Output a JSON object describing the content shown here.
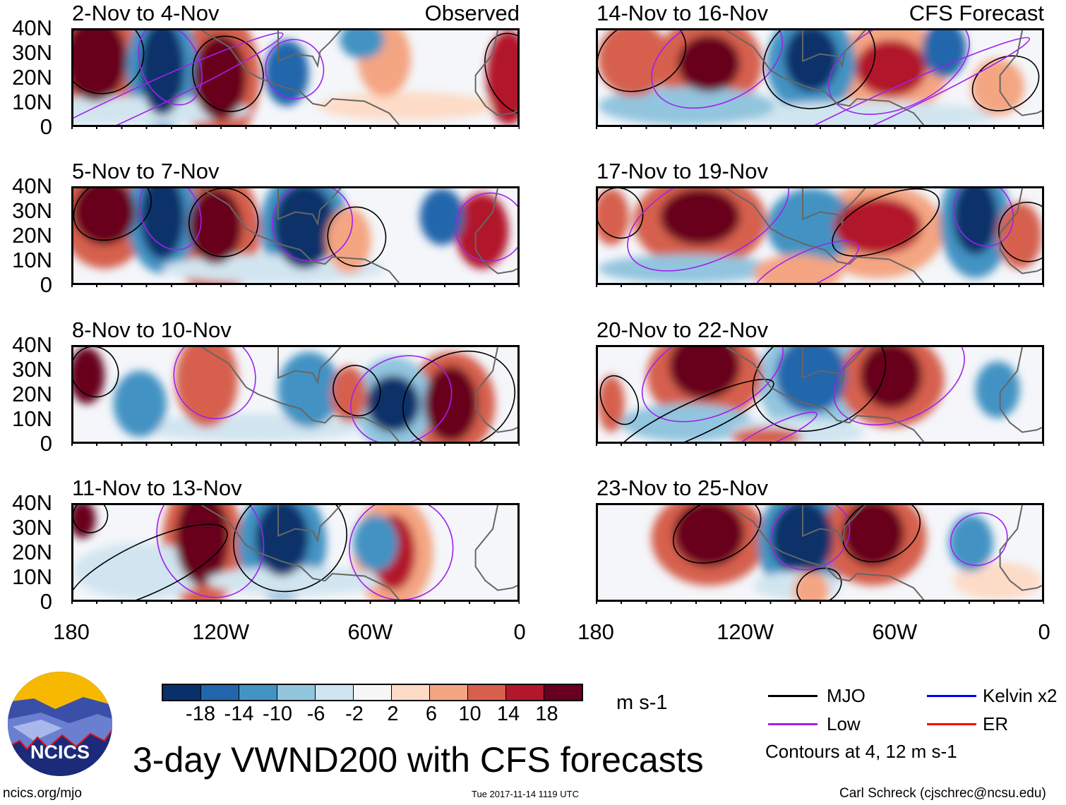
{
  "panels": [
    {
      "title": "2-Nov to 4-Nov",
      "tag": "Observed"
    },
    {
      "title": "14-Nov to 16-Nov",
      "tag": "CFS Forecast"
    },
    {
      "title": "5-Nov to 7-Nov"
    },
    {
      "title": "17-Nov to 19-Nov"
    },
    {
      "title": "8-Nov to 10-Nov"
    },
    {
      "title": "20-Nov to 22-Nov"
    },
    {
      "title": "11-Nov to 13-Nov"
    },
    {
      "title": "23-Nov to 25-Nov"
    }
  ],
  "lat_labels": [
    "40N",
    "30N",
    "20N",
    "10N",
    "0"
  ],
  "lon_labels": [
    "180",
    "120W",
    "60W",
    "0"
  ],
  "colorbar": {
    "colors": [
      "#08306b",
      "#2166ac",
      "#4393c3",
      "#92c5de",
      "#d1e5f0",
      "#f7f7f7",
      "#fddbc7",
      "#f4a582",
      "#d6604d",
      "#b2182b",
      "#67001f"
    ],
    "labels": [
      "-18",
      "-14",
      "-10",
      "-6",
      "-2",
      "2",
      "6",
      "10",
      "14",
      "18"
    ],
    "units": "m s-1"
  },
  "legend": {
    "items": [
      {
        "label": "MJO",
        "color": "#000000"
      },
      {
        "label": "Kelvin x2",
        "color": "#0000ff"
      },
      {
        "label": "Low",
        "color": "#a020f0"
      },
      {
        "label": "ER",
        "color": "#ff0000"
      }
    ],
    "note": "Contours at 4, 12 m s-1"
  },
  "logo": {
    "text": "NCICS"
  },
  "main_title": "3-day VWND200 with CFS forecasts",
  "footer": {
    "left": "ncics.org/mjo",
    "center": "Tue 2017-11-14 1119 UTC",
    "right": "Carl Schreck (cjschrec@ncsu.edu)"
  }
}
